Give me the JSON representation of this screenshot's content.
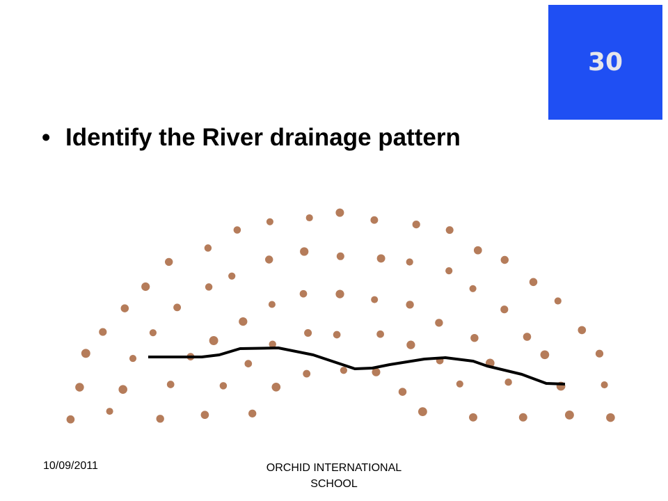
{
  "badge": "30",
  "bullet": "Identify the River drainage pattern",
  "footer": {
    "date": "10/09/2011",
    "school": "ORCHID INTERNATIONAL SCHOOL"
  }
}
